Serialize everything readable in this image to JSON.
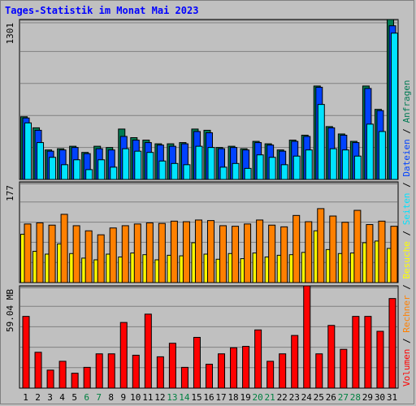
{
  "title": "Tages-Statistik im Monat Mai 2023",
  "colors": {
    "background": "#c0c0c0",
    "panel": "#c0c0c0",
    "title": "#0000ff",
    "weekend_day": "#008040",
    "weekday": "#000000",
    "anfragen": "#007a53",
    "dateien": "#0042ff",
    "seiten": "#00e3ff",
    "besuche": "#ffff00",
    "rechner": "#ff8000",
    "volumen": "#ff0000"
  },
  "right_labels": {
    "volumen": "Volumen",
    "rechner": "Rechner",
    "besuche": "Besuche",
    "seiten": "Seiten",
    "dateien": "Dateien",
    "anfragen": "Anfragen",
    "sep": " / "
  },
  "chart_data": [
    {
      "type": "bar",
      "panel": "top",
      "ymax_label": "1301",
      "ylim": [
        0,
        1301
      ],
      "x": [
        "1",
        "2",
        "3",
        "4",
        "5",
        "6",
        "7",
        "8",
        "9",
        "10",
        "11",
        "12",
        "13",
        "14",
        "15",
        "16",
        "17",
        "18",
        "19",
        "20",
        "21",
        "22",
        "23",
        "24",
        "25",
        "26",
        "27",
        "28",
        "29",
        "30",
        "31"
      ],
      "weekend": [
        "6",
        "7",
        "13",
        "14",
        "20",
        "21",
        "27",
        "28"
      ],
      "series": [
        {
          "name": "Anfragen",
          "values": [
            510,
            420,
            240,
            250,
            270,
            220,
            270,
            260,
            410,
            340,
            320,
            290,
            290,
            300,
            410,
            400,
            260,
            270,
            250,
            310,
            290,
            240,
            320,
            360,
            760,
            430,
            370,
            310,
            760,
            570,
            1301
          ]
        },
        {
          "name": "Dateien",
          "values": [
            500,
            400,
            230,
            240,
            260,
            210,
            250,
            240,
            350,
            320,
            300,
            280,
            270,
            290,
            390,
            380,
            250,
            260,
            240,
            300,
            280,
            230,
            310,
            350,
            750,
            420,
            360,
            300,
            740,
            560,
            1250
          ]
        },
        {
          "name": "Seiten",
          "values": [
            460,
            300,
            180,
            120,
            160,
            80,
            160,
            100,
            250,
            230,
            220,
            150,
            130,
            120,
            270,
            260,
            100,
            130,
            90,
            200,
            180,
            120,
            190,
            240,
            610,
            250,
            240,
            190,
            450,
            390,
            1190
          ]
        }
      ]
    },
    {
      "type": "bar",
      "panel": "middle",
      "ymax_label": "177",
      "ylim": [
        0,
        177
      ],
      "series": [
        {
          "name": "Besuche",
          "values": [
            85,
            55,
            50,
            68,
            51,
            43,
            40,
            50,
            45,
            52,
            49,
            40,
            48,
            47,
            70,
            50,
            41,
            51,
            42,
            52,
            45,
            48,
            49,
            53,
            91,
            58,
            51,
            52,
            70,
            73,
            60
          ]
        },
        {
          "name": "Rechner",
          "values": [
            103,
            105,
            101,
            120,
            100,
            91,
            84,
            96,
            100,
            103,
            105,
            104,
            108,
            107,
            110,
            109,
            100,
            99,
            103,
            110,
            101,
            98,
            118,
            107,
            130,
            117,
            106,
            127,
            102,
            108,
            99
          ]
        }
      ]
    },
    {
      "type": "bar",
      "panel": "bottom",
      "ymax_label": "59.04 MB",
      "ylim": [
        0,
        59.04
      ],
      "series": [
        {
          "name": "Volumen",
          "values": [
            41.4,
            20.7,
            10.4,
            15.5,
            8.6,
            12.0,
            19.8,
            19.8,
            37.9,
            19.0,
            42.7,
            18.1,
            25.9,
            12.0,
            29.3,
            13.8,
            19.8,
            23.3,
            24.1,
            33.6,
            15.5,
            19.8,
            30.4,
            59.04,
            19.8,
            36.2,
            22.4,
            41.4,
            41.4,
            32.8,
            51.7
          ]
        }
      ]
    }
  ]
}
